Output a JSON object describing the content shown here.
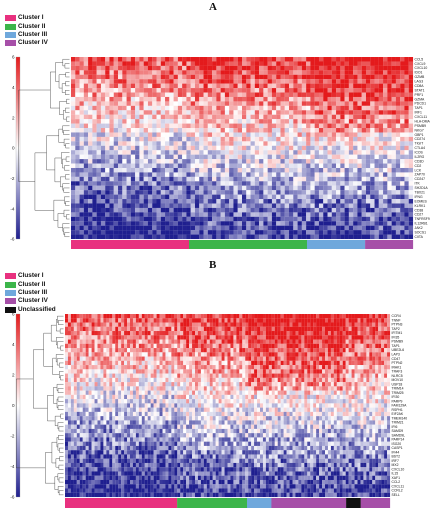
{
  "chart_data": [
    {
      "type": "heatmap",
      "panel_letter": "A",
      "legend": [
        {
          "label": "Cluster I",
          "color": "#e8317f"
        },
        {
          "label": "Cluster II",
          "color": "#3cb54a"
        },
        {
          "label": "Cluster III",
          "color": "#6fa8dc"
        },
        {
          "label": "Cluster IV",
          "color": "#a64fa8"
        }
      ],
      "color_scale": {
        "ticks": [
          "6",
          "4",
          "2",
          "0",
          "-2",
          "-4",
          "-6"
        ],
        "low": "#1f1f8f",
        "mid": "#ffffff",
        "high": "#e41a1c"
      },
      "annotation_segments": [
        {
          "cluster": "Cluster I",
          "fraction": 0.345
        },
        {
          "cluster": "Cluster II",
          "fraction": 0.345
        },
        {
          "cluster": "Cluster III",
          "fraction": 0.17
        },
        {
          "cluster": "Cluster IV",
          "fraction": 0.14
        }
      ],
      "gene_labels": [
        "CCL5",
        "CXCL9",
        "CXCL10",
        "IDO1",
        "GZMB",
        "LAG3",
        "CD8A",
        "STAT1",
        "PRF1",
        "GZMA",
        "PDCD1",
        "TAP1",
        "IRF1",
        "CXCL11",
        "HLA-DMA",
        "PSMB9",
        "NKG7",
        "GBP1",
        "CD274",
        "TIGIT",
        "CTLA4",
        "ICOS",
        "IL2RG",
        "CD3D",
        "CD2",
        "LCK",
        "ZAP70",
        "CD247",
        "ITK",
        "SH2D1A",
        "TBX21",
        "IFNG",
        "EOMES",
        "KLRK1",
        "CD38",
        "CD27",
        "TNFRSF9",
        "IL12RB1",
        "JAK2",
        "SOCS1",
        "CIITA"
      ],
      "n_columns": 80
    },
    {
      "type": "heatmap",
      "panel_letter": "B",
      "legend": [
        {
          "label": "Cluster I",
          "color": "#e8317f"
        },
        {
          "label": "Cluster II",
          "color": "#3cb54a"
        },
        {
          "label": "Cluster III",
          "color": "#6fa8dc"
        },
        {
          "label": "Cluster IV",
          "color": "#a64fa8"
        },
        {
          "label": "Unclassified",
          "color": "#111111"
        }
      ],
      "color_scale": {
        "ticks": [
          "6",
          "4",
          "2",
          "0",
          "-2",
          "-4",
          "-6"
        ],
        "low": "#1f1f8f",
        "mid": "#ffffff",
        "high": "#e41a1c"
      },
      "annotation_segments": [
        {
          "cluster": "Cluster I",
          "fraction": 0.345
        },
        {
          "cluster": "Cluster II",
          "fraction": 0.215
        },
        {
          "cluster": "Cluster III",
          "fraction": 0.075
        },
        {
          "cluster": "Cluster IV",
          "fraction": 0.23
        },
        {
          "cluster": "Unclassified",
          "fraction": 0.045
        },
        {
          "cluster": "Cluster IV",
          "fraction": 0.09
        }
      ],
      "gene_labels": [
        "CCR4",
        "TNNF",
        "PTPN3",
        "TAP2",
        "IFITM1",
        "IFI35",
        "PSMB9",
        "TAP1",
        "UBE2L6",
        "LAP3",
        "CD47",
        "PTPN2",
        "IRAK1",
        "TRAF3",
        "NLRC5",
        "MOV10",
        "USP18",
        "TRIM14",
        "TRIM25",
        "IFI30",
        "PARP9",
        "FAM129A",
        "RSPH1",
        "EIF2AK",
        "TMEM140",
        "TRIM21",
        "IFI6",
        "SAMD9",
        "SAMD9L",
        "PARP14",
        "ISG20",
        "CASP1",
        "IFI44",
        "BST2",
        "IRF7",
        "MX2",
        "CXCL10",
        "IL15",
        "XAF1",
        "CCL2",
        "CXCL11",
        "CCRL2",
        "SELL"
      ],
      "n_columns": 110
    }
  ]
}
